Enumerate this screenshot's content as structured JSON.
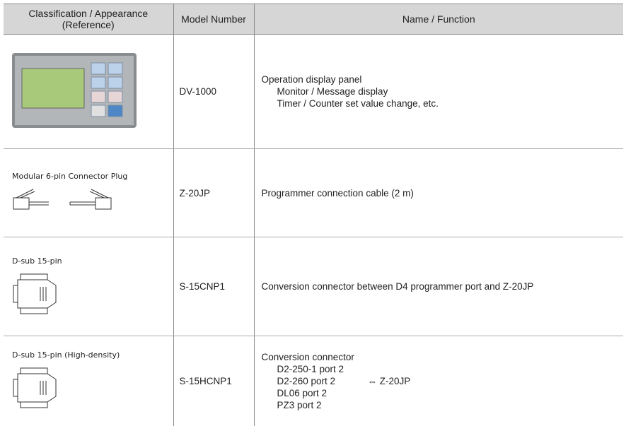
{
  "table": {
    "header": [
      "Classification / Appearance\n(Reference)",
      "Model Number",
      "Name / Function"
    ],
    "rows": [
      {
        "appearance": null,
        "model": "DV-1000",
        "function": {
          "title": "Operation display panel",
          "items": [
            "Monitor / Message display",
            "Timer / Counter set value change, etc."
          ]
        }
      },
      {
        "appearance": "Modular 6-pin Connector Plug",
        "model": "Z-20JP",
        "function": {
          "title": "Programmer connection cable (2 m)",
          "items": []
        }
      },
      {
        "appearance": "D-sub 15-pin",
        "model": "S-15CNP1",
        "function": {
          "title": "Conversion connector between D4 programmer port and Z-20JP",
          "items": []
        }
      },
      {
        "appearance": "D-sub 15-pin (High-density)",
        "model": "S-15HCNP1",
        "function": {
          "title": "Conversion connector",
          "items": [
            "D2-250-1 port 2",
            "D2-260 port 2",
            "DL06 port 2",
            "PZ3 port 2"
          ],
          "note": "⇔ Z-20JP"
        }
      }
    ]
  }
}
